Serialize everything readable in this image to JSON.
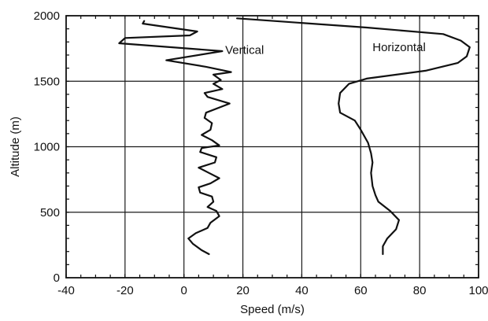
{
  "chart_data": {
    "type": "line",
    "title": "",
    "xlabel": "Speed (m/s)",
    "ylabel": "Altitude (m)",
    "xlim": [
      -40,
      100
    ],
    "ylim": [
      0,
      2000
    ],
    "x_ticks": [
      -40,
      -20,
      0,
      20,
      40,
      60,
      80,
      100
    ],
    "y_ticks": [
      0,
      500,
      1000,
      1500,
      2000
    ],
    "x_tick_labels": [
      "-40",
      "-20",
      "0",
      "20",
      "40",
      "60",
      "80",
      "100"
    ],
    "y_tick_labels": [
      "0",
      "500",
      "1000",
      "1500",
      "2000"
    ],
    "grid": true,
    "series": [
      {
        "name": "Vertical",
        "points": [
          [
            8.5,
            180
          ],
          [
            6,
            210
          ],
          [
            3,
            260
          ],
          [
            1.5,
            300
          ],
          [
            4,
            340
          ],
          [
            8,
            380
          ],
          [
            9,
            420
          ],
          [
            12,
            470
          ],
          [
            11,
            510
          ],
          [
            8,
            540
          ],
          [
            10,
            580
          ],
          [
            9.5,
            620
          ],
          [
            5.5,
            650
          ],
          [
            5,
            690
          ],
          [
            9,
            720
          ],
          [
            12,
            760
          ],
          [
            8.5,
            800
          ],
          [
            5,
            840
          ],
          [
            10.5,
            880
          ],
          [
            11,
            920
          ],
          [
            5.5,
            960
          ],
          [
            6,
            990
          ],
          [
            12,
            1010
          ],
          [
            9.5,
            1050
          ],
          [
            6,
            1090
          ],
          [
            9,
            1130
          ],
          [
            9.5,
            1180
          ],
          [
            7,
            1220
          ],
          [
            7.5,
            1260
          ],
          [
            15.5,
            1330
          ],
          [
            8,
            1380
          ],
          [
            7,
            1410
          ],
          [
            13,
            1440
          ],
          [
            10,
            1480
          ],
          [
            12.5,
            1510
          ],
          [
            10,
            1550
          ],
          [
            16,
            1570
          ],
          [
            7.5,
            1610
          ],
          [
            -6,
            1660
          ],
          [
            13,
            1730
          ],
          [
            -22,
            1790
          ],
          [
            -20,
            1830
          ],
          [
            2,
            1850
          ],
          [
            4.5,
            1880
          ],
          [
            -14,
            1940
          ],
          [
            -13.5,
            1960
          ]
        ]
      },
      {
        "name": "Horizontal",
        "points": [
          [
            67.5,
            180
          ],
          [
            67.5,
            240
          ],
          [
            69,
            300
          ],
          [
            72,
            370
          ],
          [
            73,
            440
          ],
          [
            70,
            510
          ],
          [
            66,
            580
          ],
          [
            65,
            630
          ],
          [
            64,
            700
          ],
          [
            63.5,
            800
          ],
          [
            64,
            880
          ],
          [
            63.5,
            950
          ],
          [
            62.5,
            1030
          ],
          [
            60,
            1130
          ],
          [
            58,
            1200
          ],
          [
            53,
            1260
          ],
          [
            52.5,
            1330
          ],
          [
            53,
            1410
          ],
          [
            56,
            1480
          ],
          [
            62,
            1520
          ],
          [
            82,
            1580
          ],
          [
            93,
            1640
          ],
          [
            96,
            1690
          ],
          [
            97,
            1760
          ],
          [
            94,
            1810
          ],
          [
            88,
            1860
          ],
          [
            62,
            1910
          ],
          [
            18,
            1980
          ]
        ]
      }
    ],
    "annotations": [
      {
        "text": "Vertical",
        "x": 14,
        "y": 1740
      },
      {
        "text": "Horizontal",
        "x": 64,
        "y": 1760
      }
    ]
  }
}
